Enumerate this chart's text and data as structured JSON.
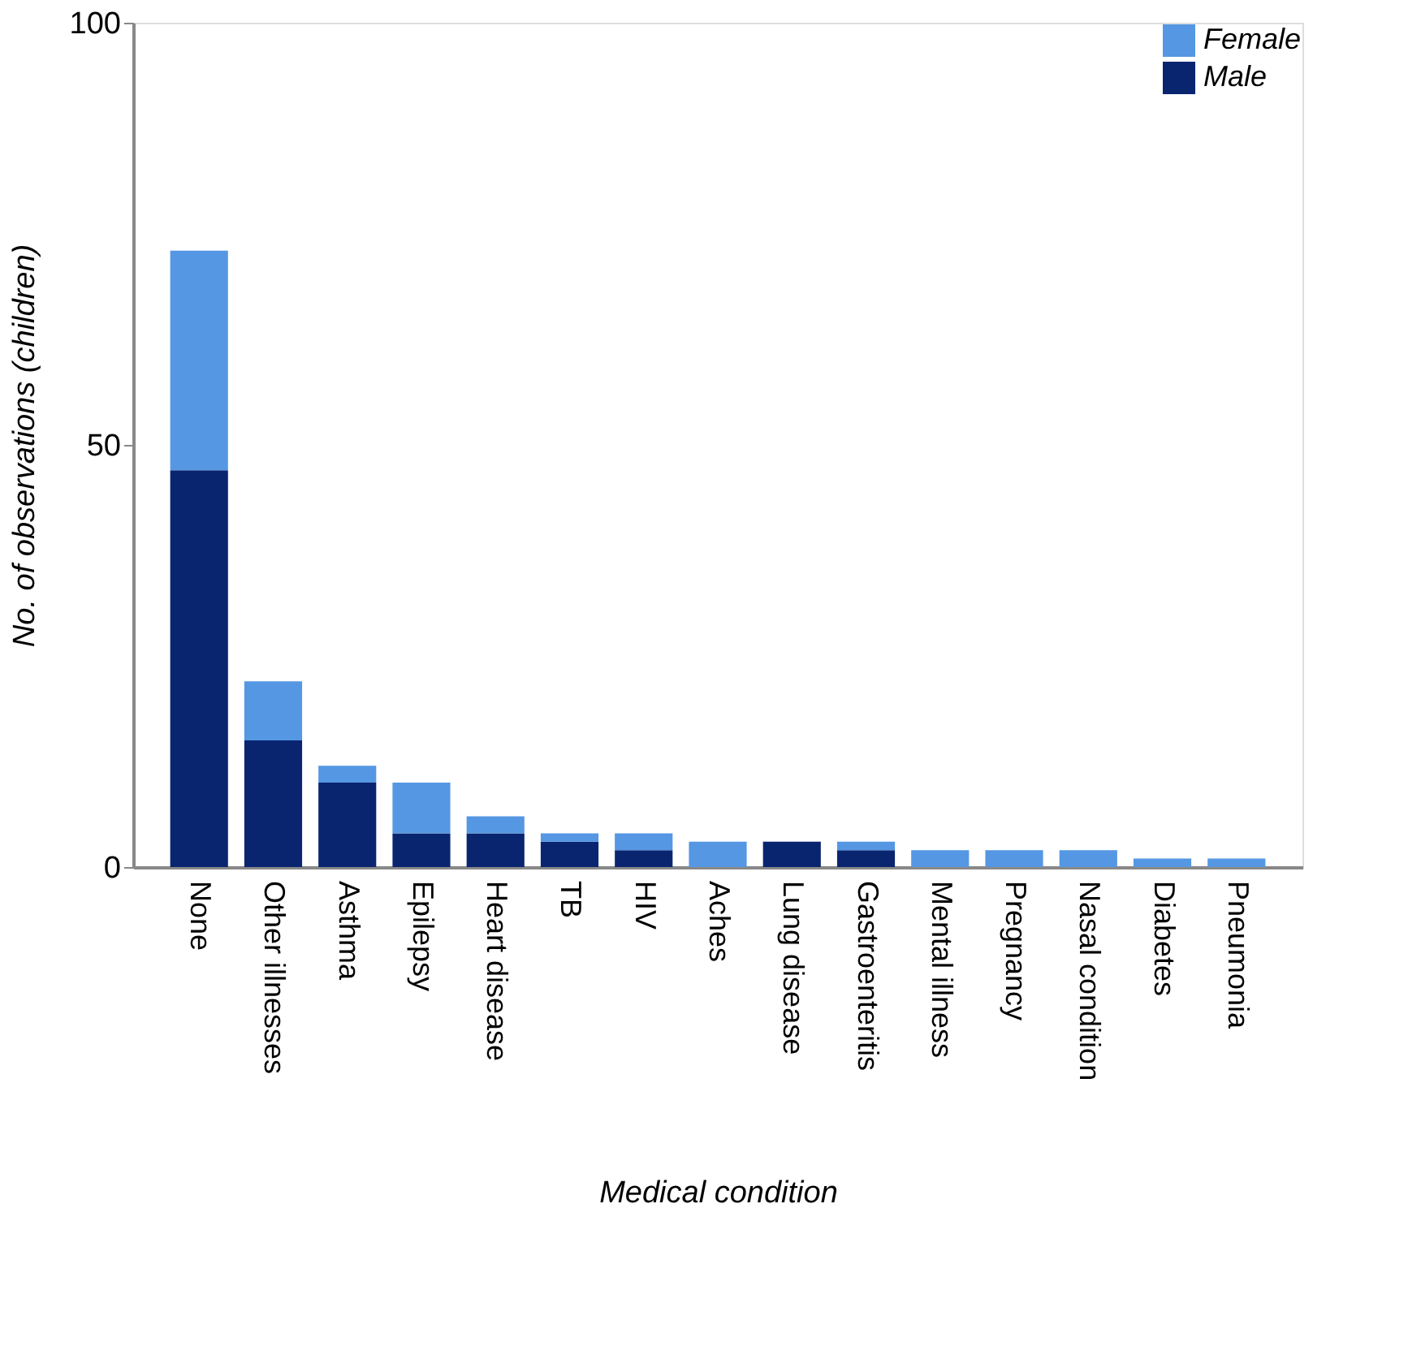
{
  "chart_data": {
    "type": "bar",
    "stacked": true,
    "xlabel": "Medical condition",
    "ylabel": "No. of observations (children)",
    "categories": [
      "None",
      "Other illnesses",
      "Asthma",
      "Epilepsy",
      "Heart disease",
      "TB",
      "HIV",
      "Aches",
      "Lung disease",
      "Gastroenteritis",
      "Mental illness",
      "Pregnancy",
      "Nasal condition",
      "Diabetes",
      "Pneumonia"
    ],
    "series": [
      {
        "name": "Male",
        "color": "#0a2570",
        "values": [
          47,
          15,
          10,
          4,
          4,
          3,
          2,
          0,
          3,
          2,
          0,
          0,
          0,
          0,
          0
        ]
      },
      {
        "name": "Female",
        "color": "#5597e3",
        "values": [
          26,
          7,
          2,
          6,
          2,
          1,
          2,
          3,
          0,
          1,
          2,
          2,
          2,
          1,
          1
        ]
      }
    ],
    "ylim": [
      0,
      100
    ],
    "yticks": [
      0,
      50,
      100
    ],
    "grid": false,
    "legend": "top right"
  }
}
